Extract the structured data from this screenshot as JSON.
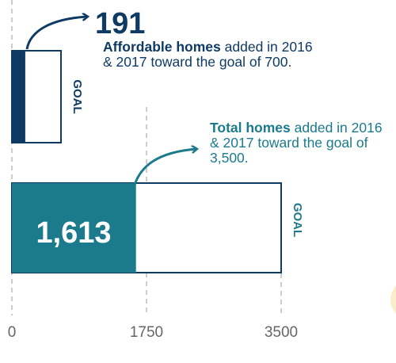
{
  "colors": {
    "affordable": "#0f3a63",
    "total": "#1b7a8c",
    "outline": "#0f3a63",
    "axis_text": "#666666",
    "gridline": "#9a9a9a",
    "accent_glow": "#f2d38a"
  },
  "chart_data": {
    "type": "bar",
    "orientation": "horizontal",
    "xlim": [
      0,
      3500
    ],
    "ticks": [
      {
        "value": 0,
        "label": "0"
      },
      {
        "value": 1750,
        "label": "1750"
      },
      {
        "value": 3500,
        "label": "3500"
      }
    ],
    "grid": true,
    "bars": [
      {
        "key": "affordable",
        "value": 191,
        "value_label": "191",
        "goal": 700,
        "goal_label": "GOAL",
        "annotation_bold": "Affordable homes",
        "annotation_rest": " added in 2016 & 2017 toward the goal of 700."
      },
      {
        "key": "total",
        "value": 1613,
        "value_label": "1,613",
        "goal": 3500,
        "goal_label": "GOAL",
        "annotation_bold": "Total homes",
        "annotation_rest": " added in 2016 & 2017 toward the goal of 3,500."
      }
    ]
  }
}
